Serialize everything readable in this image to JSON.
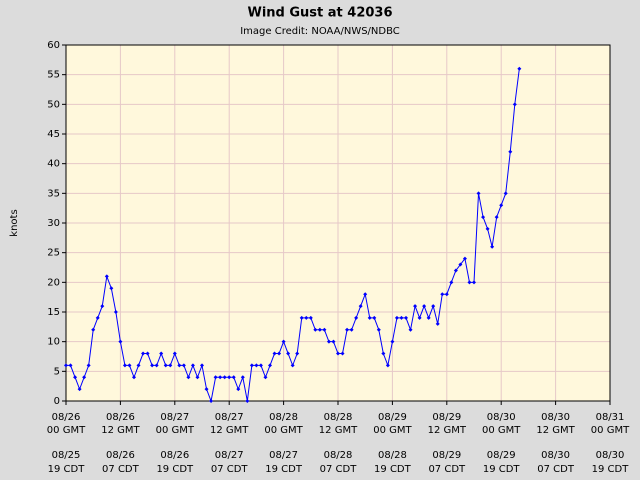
{
  "chart_data": {
    "type": "line",
    "title": "Wind Gust at 42036",
    "subtitle": "Image Credit: NOAA/NWS/NDBC",
    "ylabel": "knots",
    "color": "#0000ff",
    "grid": true,
    "ylim": [
      0,
      60
    ],
    "yticks": [
      0,
      5,
      10,
      15,
      20,
      25,
      30,
      35,
      40,
      45,
      50,
      55,
      60
    ],
    "xlim": [
      "08/26 00",
      "08/31 00"
    ],
    "xticks": [
      {
        "value": "08/26 00",
        "label": [
          "08/26",
          "00 GMT"
        ],
        "label2": [
          "08/25",
          "19 CDT"
        ]
      },
      {
        "value": "08/26 12",
        "label": [
          "08/26",
          "12 GMT"
        ],
        "label2": [
          "08/26",
          "07 CDT"
        ]
      },
      {
        "value": "08/27 00",
        "label": [
          "08/27",
          "00 GMT"
        ],
        "label2": [
          "08/26",
          "19 CDT"
        ]
      },
      {
        "value": "08/27 12",
        "label": [
          "08/27",
          "12 GMT"
        ],
        "label2": [
          "08/27",
          "07 CDT"
        ]
      },
      {
        "value": "08/28 00",
        "label": [
          "08/28",
          "00 GMT"
        ],
        "label2": [
          "08/27",
          "19 CDT"
        ]
      },
      {
        "value": "08/28 12",
        "label": [
          "08/28",
          "12 GMT"
        ],
        "label2": [
          "08/28",
          "07 CDT"
        ]
      },
      {
        "value": "08/29 00",
        "label": [
          "08/29",
          "00 GMT"
        ],
        "label2": [
          "08/28",
          "19 CDT"
        ]
      },
      {
        "value": "08/29 12",
        "label": [
          "08/29",
          "12 GMT"
        ],
        "label2": [
          "08/29",
          "07 CDT"
        ]
      },
      {
        "value": "08/30 00",
        "label": [
          "08/30",
          "00 GMT"
        ],
        "label2": [
          "08/29",
          "19 CDT"
        ]
      },
      {
        "value": "08/30 12",
        "label": [
          "08/30",
          "12 GMT"
        ],
        "label2": [
          "08/30",
          "07 CDT"
        ]
      },
      {
        "value": "08/31 00",
        "label": [
          "08/31",
          "00 GMT"
        ],
        "label2": [
          "08/30",
          "19 CDT"
        ]
      }
    ],
    "x": [
      "08/26 00",
      "08/26 01",
      "08/26 02",
      "08/26 03",
      "08/26 04",
      "08/26 05",
      "08/26 06",
      "08/26 07",
      "08/26 08",
      "08/26 09",
      "08/26 10",
      "08/26 11",
      "08/26 12",
      "08/26 13",
      "08/26 14",
      "08/26 15",
      "08/26 16",
      "08/26 17",
      "08/26 18",
      "08/26 19",
      "08/26 20",
      "08/26 21",
      "08/26 22",
      "08/26 23",
      "08/27 00",
      "08/27 01",
      "08/27 02",
      "08/27 03",
      "08/27 04",
      "08/27 05",
      "08/27 06",
      "08/27 07",
      "08/27 08",
      "08/27 09",
      "08/27 10",
      "08/27 11",
      "08/27 12",
      "08/27 13",
      "08/27 14",
      "08/27 15",
      "08/27 16",
      "08/27 17",
      "08/27 18",
      "08/27 19",
      "08/27 20",
      "08/27 21",
      "08/27 22",
      "08/27 23",
      "08/28 00",
      "08/28 01",
      "08/28 02",
      "08/28 03",
      "08/28 04",
      "08/28 05",
      "08/28 06",
      "08/28 07",
      "08/28 08",
      "08/28 09",
      "08/28 10",
      "08/28 11",
      "08/28 12",
      "08/28 13",
      "08/28 14",
      "08/28 15",
      "08/28 16",
      "08/28 17",
      "08/28 18",
      "08/28 19",
      "08/28 20",
      "08/28 21",
      "08/28 22",
      "08/28 23",
      "08/29 00",
      "08/29 01",
      "08/29 02",
      "08/29 03",
      "08/29 04",
      "08/29 05",
      "08/29 06",
      "08/29 07",
      "08/29 08",
      "08/29 09",
      "08/29 10",
      "08/29 11",
      "08/29 12",
      "08/29 13",
      "08/29 14",
      "08/29 15",
      "08/29 16",
      "08/29 17",
      "08/29 18",
      "08/29 19",
      "08/29 20",
      "08/29 21",
      "08/29 22",
      "08/29 23",
      "08/30 00",
      "08/30 01",
      "08/30 02",
      "08/30 03",
      "08/30 04"
    ],
    "values": [
      6,
      6,
      4,
      2,
      4,
      6,
      12,
      14,
      16,
      21,
      19,
      15,
      10,
      6,
      6,
      4,
      6,
      8,
      8,
      6,
      6,
      8,
      6,
      6,
      8,
      6,
      6,
      4,
      6,
      4,
      6,
      2,
      0,
      4,
      4,
      4,
      4,
      4,
      2,
      4,
      0,
      6,
      6,
      6,
      4,
      6,
      8,
      8,
      10,
      8,
      6,
      8,
      14,
      14,
      14,
      12,
      12,
      12,
      10,
      10,
      8,
      8,
      12,
      12,
      14,
      16,
      18,
      14,
      14,
      12,
      8,
      6,
      10,
      14,
      14,
      14,
      12,
      16,
      14,
      16,
      14,
      16,
      13,
      18,
      18,
      20,
      22,
      23,
      24,
      20,
      20,
      35,
      31,
      29,
      26,
      31,
      33,
      35,
      42,
      50,
      56
    ]
  }
}
